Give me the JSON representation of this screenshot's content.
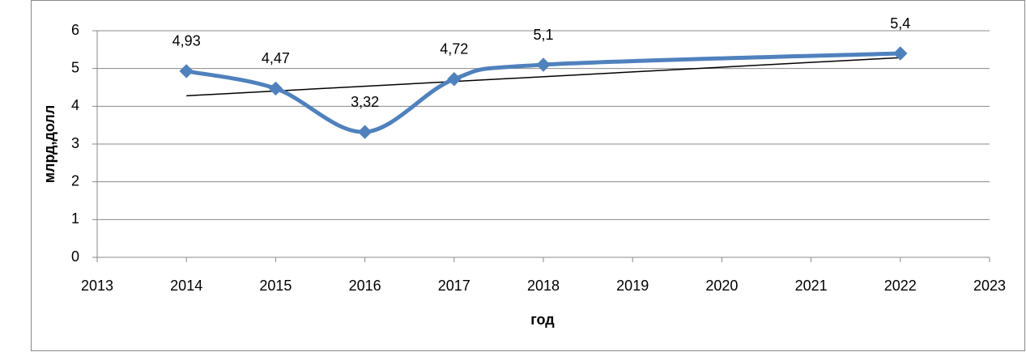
{
  "chart_data": {
    "type": "line",
    "x": [
      2014,
      2015,
      2016,
      2017,
      2018,
      2022
    ],
    "series": [
      {
        "values": [
          4.93,
          4.47,
          3.32,
          4.72,
          5.1,
          5.4
        ],
        "value_labels": [
          "4,93",
          "4,47",
          "3,32",
          "4,72",
          "5,1",
          "5,4"
        ],
        "color": "#4f81bd",
        "smooth": true,
        "marker": "diamond",
        "trendline": "linear"
      }
    ],
    "xlabel": "год",
    "ylabel": "млрд,долл",
    "xlim": [
      2013,
      2023
    ],
    "xticks": [
      2013,
      2014,
      2015,
      2016,
      2017,
      2018,
      2019,
      2020,
      2021,
      2022,
      2023
    ],
    "ylim": [
      0,
      6
    ],
    "yticks": [
      0,
      1,
      2,
      3,
      4,
      5,
      6
    ],
    "grid": true
  }
}
